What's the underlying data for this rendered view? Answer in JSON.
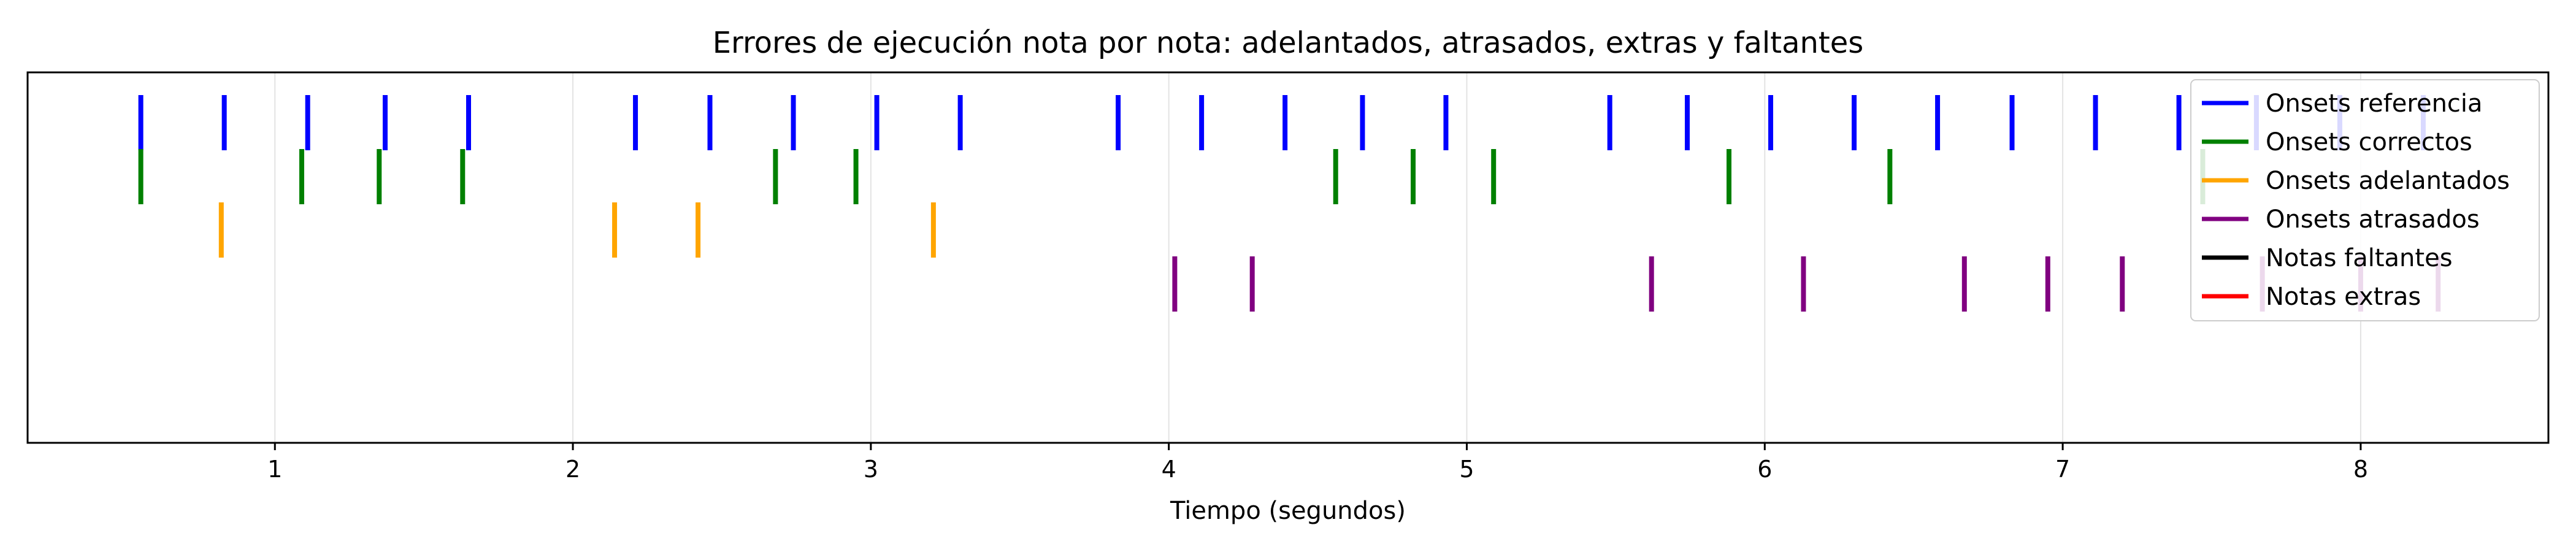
{
  "chart_data": {
    "type": "event-raster",
    "title": "Errores de ejecución nota por nota: adelantados, atrasados, extras y faltantes",
    "xlabel": "Tiempo (segundos)",
    "ylabel": "",
    "xlim": [
      0.17,
      8.63
    ],
    "xticks": [
      1,
      2,
      3,
      4,
      5,
      6,
      7,
      8
    ],
    "grid": "vertical",
    "legend_position": "top-right",
    "series": [
      {
        "name": "Onsets referencia",
        "color": "#0000ff",
        "values": [
          0.55,
          0.83,
          1.11,
          1.37,
          1.65,
          2.21,
          2.46,
          2.74,
          3.02,
          3.3,
          3.83,
          4.11,
          4.39,
          4.65,
          4.93,
          5.48,
          5.74,
          6.02,
          6.3,
          6.58,
          6.83,
          7.11,
          7.39,
          7.65,
          7.93,
          8.21
        ]
      },
      {
        "name": "Onsets correctos",
        "color": "#008000",
        "values": [
          0.55,
          1.09,
          1.35,
          1.63,
          2.68,
          2.95,
          4.56,
          4.82,
          5.09,
          5.88,
          6.42,
          7.47
        ]
      },
      {
        "name": "Onsets adelantados",
        "color": "#ffa500",
        "values": [
          0.82,
          2.14,
          2.42,
          3.21
        ]
      },
      {
        "name": "Onsets atrasados",
        "color": "#800080",
        "values": [
          4.02,
          4.28,
          5.62,
          6.13,
          6.67,
          6.95,
          7.2,
          7.67,
          8.0,
          8.26
        ]
      },
      {
        "name": "Notas faltantes",
        "color": "#000000",
        "values": []
      },
      {
        "name": "Notas extras",
        "color": "#ff0000",
        "values": []
      }
    ]
  }
}
